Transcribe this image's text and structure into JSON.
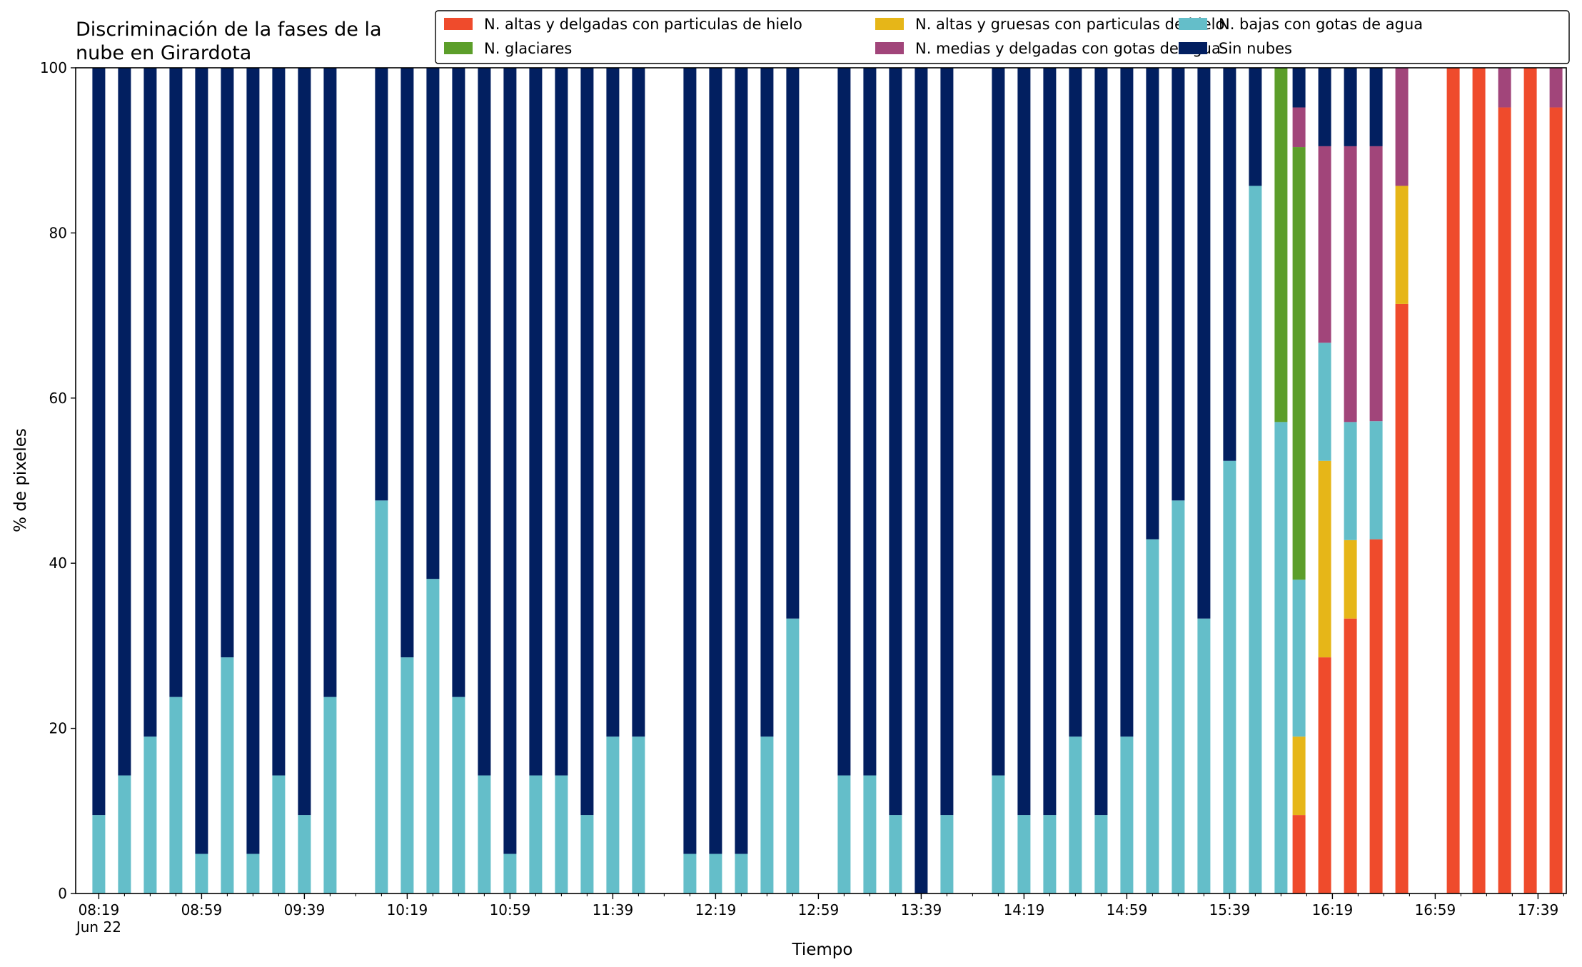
{
  "chart_data": {
    "type": "bar",
    "stacked": true,
    "title": "Discriminación de la fases de la nube en Girardota",
    "title_lines": [
      "Discriminación de la fases de la",
      "nube en Girardota"
    ],
    "xlabel": "Tiempo",
    "ylabel": "% de pixeles",
    "ylim": [
      0,
      100
    ],
    "yticks": [
      "0",
      "20",
      "40",
      "60",
      "80",
      "100"
    ],
    "xlim_minutes": [
      490,
      1070
    ],
    "xticks_major": [
      {
        "t": 499,
        "label": "08:19",
        "sub": "Jun 22"
      },
      {
        "t": 539,
        "label": "08:59",
        "sub": ""
      },
      {
        "t": 579,
        "label": "09:39",
        "sub": ""
      },
      {
        "t": 619,
        "label": "10:19",
        "sub": ""
      },
      {
        "t": 659,
        "label": "10:59",
        "sub": ""
      },
      {
        "t": 699,
        "label": "11:39",
        "sub": ""
      },
      {
        "t": 739,
        "label": "12:19",
        "sub": ""
      },
      {
        "t": 779,
        "label": "12:59",
        "sub": ""
      },
      {
        "t": 819,
        "label": "13:39",
        "sub": ""
      },
      {
        "t": 859,
        "label": "14:19",
        "sub": ""
      },
      {
        "t": 899,
        "label": "14:59",
        "sub": ""
      },
      {
        "t": 939,
        "label": "15:39",
        "sub": ""
      },
      {
        "t": 979,
        "label": "16:19",
        "sub": ""
      },
      {
        "t": 1019,
        "label": "16:59",
        "sub": ""
      },
      {
        "t": 1059,
        "label": "17:39",
        "sub": ""
      }
    ],
    "grid": false,
    "legend_position": "top-right",
    "legend_columns": 3,
    "series": [
      {
        "key": "altas_delgadas",
        "name": "N. altas y delgadas con particulas de hielo",
        "color": "#ef4b2c"
      },
      {
        "key": "altas_gruesas",
        "name": "N. altas y gruesas con particulas de hielo",
        "color": "#e6b618"
      },
      {
        "key": "bajas",
        "name": "N. bajas con gotas de agua",
        "color": "#64bec9"
      },
      {
        "key": "glaciares",
        "name": "N. glaciares",
        "color": "#5c9e2a"
      },
      {
        "key": "medias",
        "name": "N. medias y delgadas con gotas de agua",
        "color": "#a1457a"
      },
      {
        "key": "sin_nubes",
        "name": "Sin nubes",
        "color": "#021f60"
      }
    ],
    "stack_order": [
      "altas_delgadas",
      "altas_gruesas",
      "bajas",
      "glaciares",
      "medias",
      "sin_nubes"
    ],
    "bars": [
      {
        "t": 499,
        "values": {
          "bajas": 9.5,
          "sin_nubes": 90.5
        }
      },
      {
        "t": 509,
        "values": {
          "bajas": 14.3,
          "sin_nubes": 85.7
        }
      },
      {
        "t": 519,
        "values": {
          "bajas": 19.0,
          "sin_nubes": 81.0
        }
      },
      {
        "t": 529,
        "values": {
          "bajas": 23.8,
          "sin_nubes": 76.2
        }
      },
      {
        "t": 539,
        "values": {
          "bajas": 4.8,
          "sin_nubes": 95.2
        }
      },
      {
        "t": 549,
        "values": {
          "bajas": 28.6,
          "sin_nubes": 71.4
        }
      },
      {
        "t": 559,
        "values": {
          "bajas": 4.8,
          "sin_nubes": 95.2
        }
      },
      {
        "t": 569,
        "values": {
          "bajas": 14.3,
          "sin_nubes": 85.7
        }
      },
      {
        "t": 579,
        "values": {
          "bajas": 9.5,
          "sin_nubes": 90.5
        }
      },
      {
        "t": 589,
        "values": {
          "bajas": 23.8,
          "sin_nubes": 76.2
        }
      },
      {
        "t": 609,
        "values": {
          "bajas": 47.6,
          "sin_nubes": 52.4
        }
      },
      {
        "t": 619,
        "values": {
          "bajas": 28.6,
          "sin_nubes": 71.4
        }
      },
      {
        "t": 629,
        "values": {
          "bajas": 38.1,
          "sin_nubes": 61.9
        }
      },
      {
        "t": 639,
        "values": {
          "bajas": 23.8,
          "sin_nubes": 76.2
        }
      },
      {
        "t": 649,
        "values": {
          "bajas": 14.3,
          "sin_nubes": 85.7
        }
      },
      {
        "t": 659,
        "values": {
          "bajas": 4.8,
          "sin_nubes": 95.2
        }
      },
      {
        "t": 669,
        "values": {
          "bajas": 14.3,
          "sin_nubes": 85.7
        }
      },
      {
        "t": 679,
        "values": {
          "bajas": 14.3,
          "sin_nubes": 85.7
        }
      },
      {
        "t": 689,
        "values": {
          "bajas": 9.5,
          "sin_nubes": 90.5
        }
      },
      {
        "t": 699,
        "values": {
          "bajas": 19.0,
          "sin_nubes": 81.0
        }
      },
      {
        "t": 709,
        "values": {
          "bajas": 19.0,
          "sin_nubes": 81.0
        }
      },
      {
        "t": 729,
        "values": {
          "bajas": 4.8,
          "sin_nubes": 95.2
        }
      },
      {
        "t": 739,
        "values": {
          "bajas": 4.8,
          "sin_nubes": 95.2
        }
      },
      {
        "t": 749,
        "values": {
          "bajas": 4.8,
          "sin_nubes": 95.2
        }
      },
      {
        "t": 759,
        "values": {
          "bajas": 19.0,
          "sin_nubes": 81.0
        }
      },
      {
        "t": 769,
        "values": {
          "bajas": 33.3,
          "sin_nubes": 66.7
        }
      },
      {
        "t": 789,
        "values": {
          "bajas": 14.3,
          "sin_nubes": 85.7
        }
      },
      {
        "t": 799,
        "values": {
          "bajas": 14.3,
          "sin_nubes": 85.7
        }
      },
      {
        "t": 809,
        "values": {
          "bajas": 9.5,
          "sin_nubes": 90.5
        }
      },
      {
        "t": 819,
        "values": {
          "bajas": 0,
          "sin_nubes": 100
        }
      },
      {
        "t": 829,
        "values": {
          "bajas": 9.5,
          "sin_nubes": 90.5
        }
      },
      {
        "t": 849,
        "values": {
          "bajas": 14.3,
          "sin_nubes": 85.7
        }
      },
      {
        "t": 859,
        "values": {
          "bajas": 9.5,
          "sin_nubes": 90.5
        }
      },
      {
        "t": 869,
        "values": {
          "bajas": 9.5,
          "sin_nubes": 90.5
        }
      },
      {
        "t": 879,
        "values": {
          "bajas": 19.0,
          "sin_nubes": 81.0
        }
      },
      {
        "t": 889,
        "values": {
          "bajas": 9.5,
          "sin_nubes": 90.5
        }
      },
      {
        "t": 899,
        "values": {
          "bajas": 19.0,
          "sin_nubes": 81.0
        }
      },
      {
        "t": 909,
        "values": {
          "bajas": 42.9,
          "sin_nubes": 57.1
        }
      },
      {
        "t": 919,
        "values": {
          "bajas": 47.6,
          "sin_nubes": 52.4
        }
      },
      {
        "t": 929,
        "values": {
          "bajas": 33.3,
          "sin_nubes": 66.7
        }
      },
      {
        "t": 939,
        "values": {
          "bajas": 52.4,
          "sin_nubes": 47.6
        }
      },
      {
        "t": 949,
        "values": {
          "bajas": 85.7,
          "sin_nubes": 14.3
        }
      },
      {
        "t": 959,
        "values": {
          "bajas": 57.1,
          "glaciares": 42.9
        }
      },
      {
        "t": 966,
        "values": {
          "altas_delgadas": 9.5,
          "altas_gruesas": 9.5,
          "bajas": 19.0,
          "glaciares": 52.4,
          "medias": 4.8,
          "sin_nubes": 4.8
        }
      },
      {
        "t": 976,
        "values": {
          "altas_delgadas": 28.6,
          "altas_gruesas": 23.8,
          "bajas": 14.3,
          "medias": 23.8,
          "sin_nubes": 9.5
        }
      },
      {
        "t": 986,
        "values": {
          "altas_delgadas": 33.3,
          "altas_gruesas": 9.5,
          "bajas": 14.3,
          "medias": 33.4,
          "sin_nubes": 9.5
        }
      },
      {
        "t": 996,
        "values": {
          "altas_delgadas": 42.9,
          "bajas": 14.3,
          "medias": 33.3,
          "sin_nubes": 9.5
        }
      },
      {
        "t": 1006,
        "values": {
          "altas_delgadas": 71.4,
          "altas_gruesas": 14.3,
          "medias": 14.3
        }
      },
      {
        "t": 1026,
        "values": {
          "altas_delgadas": 100
        }
      },
      {
        "t": 1036,
        "values": {
          "altas_delgadas": 100
        }
      },
      {
        "t": 1046,
        "values": {
          "altas_delgadas": 95.2,
          "medias": 4.8
        }
      },
      {
        "t": 1056,
        "values": {
          "altas_delgadas": 100
        }
      },
      {
        "t": 1066,
        "values": {
          "altas_delgadas": 95.2,
          "medias": 4.8
        }
      }
    ]
  }
}
